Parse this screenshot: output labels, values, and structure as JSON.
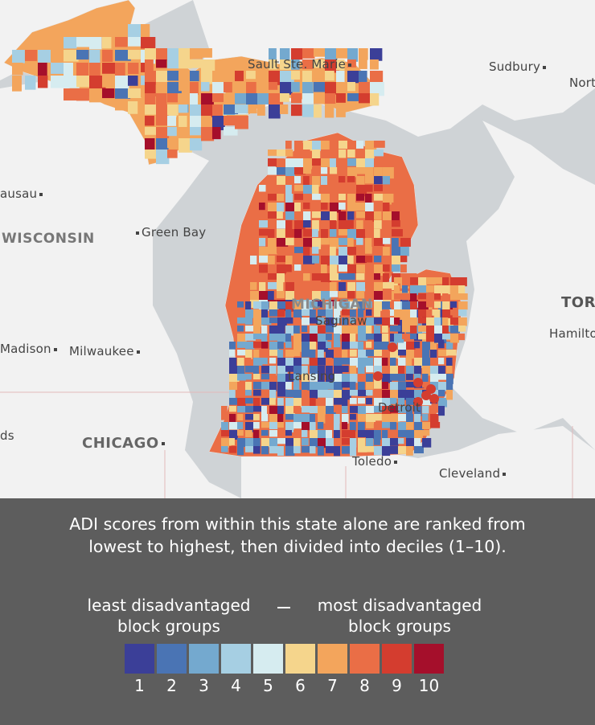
{
  "map": {
    "places": {
      "sault": "Sault Ste. Marie",
      "sudbury": "Sudbury",
      "north_bay": "Nort",
      "wausau": "ausau",
      "wisconsin": "WISCONSIN",
      "green_bay": "Green Bay",
      "michigan": "MICHIGAN",
      "saginaw": "Saginaw",
      "toronto": "TORO",
      "hamilton": "Hamilto",
      "madison": "Madison",
      "milwaukee": "Milwaukee",
      "lansing": "Lansing",
      "detroit": "Detroit",
      "ds": "ds",
      "chicago": "CHICAGO",
      "toledo": "Toledo",
      "cleveland": "Cleveland"
    },
    "colors": {
      "water": "#cfd3d6",
      "land": "#f2f2f2"
    }
  },
  "legend": {
    "caption_line1": "ADI scores from within this state alone are ranked from",
    "caption_line2": "lowest to highest, then divided into deciles (1–10).",
    "left_title_line1": "least disadvantaged",
    "left_title_line2": "block groups",
    "right_title_line1": "most disadvantaged",
    "right_title_line2": "block groups",
    "deciles": [
      {
        "label": "1",
        "color": "#3b3f98"
      },
      {
        "label": "2",
        "color": "#4a74b4"
      },
      {
        "label": "3",
        "color": "#74a9cf"
      },
      {
        "label": "4",
        "color": "#a6cfe3"
      },
      {
        "label": "5",
        "color": "#d6ecf0"
      },
      {
        "label": "6",
        "color": "#f5d58c"
      },
      {
        "label": "7",
        "color": "#f3a55c"
      },
      {
        "label": "8",
        "color": "#ea6e46"
      },
      {
        "label": "9",
        "color": "#d43d2f"
      },
      {
        "label": "10",
        "color": "#a50f2b"
      }
    ]
  }
}
